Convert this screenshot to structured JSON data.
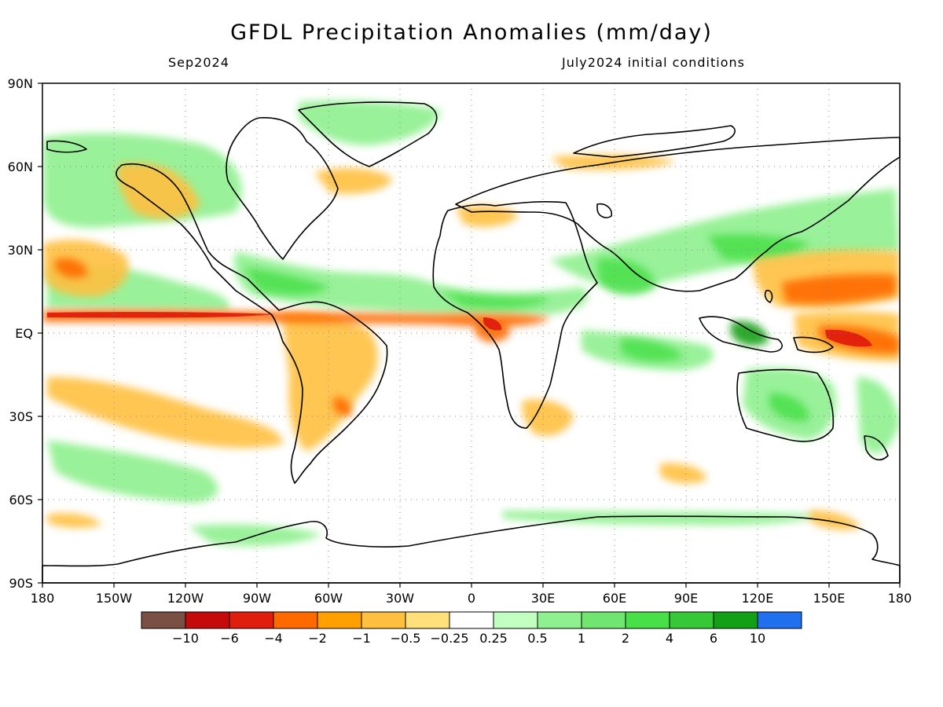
{
  "header": {
    "title": "GFDL Precipitation Anomalies (mm/day)",
    "valid_month": "Sep2024",
    "init_conditions": "July2024 initial conditions"
  },
  "map": {
    "lat_labels": [
      "90N",
      "60N",
      "30N",
      "EQ",
      "30S",
      "60S",
      "90S"
    ],
    "lon_labels": [
      "180",
      "150W",
      "120W",
      "90W",
      "60W",
      "30W",
      "0",
      "30E",
      "60E",
      "90E",
      "120E",
      "150E",
      "180"
    ],
    "grid": "dotted",
    "coastlines": "black"
  },
  "colorbar": {
    "colors": [
      "#7a5045",
      "#c40a0a",
      "#e01e0e",
      "#ff6a00",
      "#ffa000",
      "#ffc040",
      "#ffe07a",
      "#ffffff",
      "#c0ffc0",
      "#8ef08e",
      "#70e670",
      "#48e048",
      "#36c836",
      "#14a014",
      "#2070f0"
    ],
    "labels": [
      "−10",
      "−6",
      "−4",
      "−2",
      "−1",
      "−0.5",
      "−0.25",
      "0.25",
      "0.5",
      "1",
      "2",
      "4",
      "6",
      "10"
    ]
  }
}
